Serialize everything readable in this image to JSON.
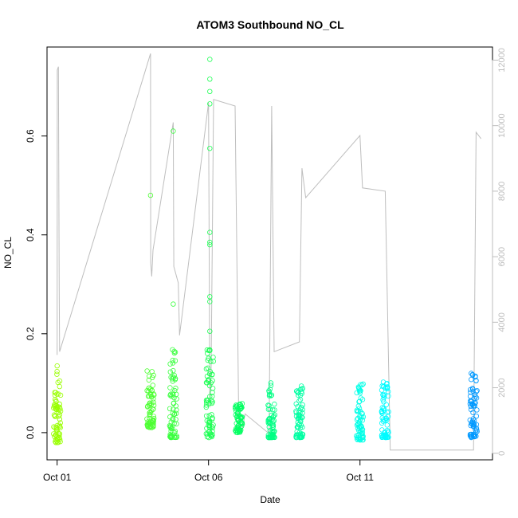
{
  "chart_data": {
    "type": "scatter",
    "title": "ATOM3 Southbound NO_CL",
    "xlabel": "Date",
    "ylabel": "NO_CL",
    "x_ticks": [
      "Oct 01",
      "Oct 06",
      "Oct 11"
    ],
    "x_tick_dates": [
      "2023-10-01",
      "2023-10-06",
      "2023-10-11"
    ],
    "xlim": [
      "2023-09-30T16:00",
      "2023-10-15T09:00"
    ],
    "ylim": [
      -0.055,
      0.78
    ],
    "y_ticks": [
      0.0,
      0.2,
      0.4,
      0.6
    ],
    "right_ylim": [
      -200,
      12400
    ],
    "right_ticks": [
      0,
      2000,
      4000,
      6000,
      8000,
      10000,
      12000
    ],
    "grid": false,
    "legend": "none",
    "colors": {
      "points_start": "#99ff00",
      "points_mid": "#00ff66",
      "points_late": "#00ffff",
      "points_end": "#0099ff",
      "secondary_line": "#bebebe"
    },
    "clusters": [
      {
        "t": "2023-10-01T00:00",
        "range": [
          -0.02,
          0.125
        ],
        "outliers": [
          0.135
        ]
      },
      {
        "t": "2023-10-04T02:00",
        "range": [
          0.01,
          0.13
        ],
        "outliers": [
          0.48
        ]
      },
      {
        "t": "2023-10-04T20:00",
        "range": [
          -0.01,
          0.17
        ],
        "outliers": [
          0.26,
          0.61
        ]
      },
      {
        "t": "2023-10-06T01:00",
        "range": [
          -0.01,
          0.18
        ],
        "outliers": [
          0.205,
          0.265,
          0.275,
          0.38,
          0.385,
          0.405,
          0.575,
          0.665,
          0.69,
          0.715,
          0.755
        ]
      },
      {
        "t": "2023-10-07T00:00",
        "range": [
          0.0,
          0.06
        ],
        "outliers": []
      },
      {
        "t": "2023-10-08T02:00",
        "range": [
          -0.01,
          0.105
        ],
        "outliers": []
      },
      {
        "t": "2023-10-09T00:00",
        "range": [
          -0.01,
          0.095
        ],
        "outliers": []
      },
      {
        "t": "2023-10-11T00:00",
        "range": [
          -0.015,
          0.105
        ],
        "outliers": []
      },
      {
        "t": "2023-10-11T20:00",
        "range": [
          -0.01,
          0.11
        ],
        "outliers": []
      },
      {
        "t": "2023-10-14T18:00",
        "range": [
          -0.01,
          0.12
        ],
        "outliers": []
      }
    ],
    "secondary_series": {
      "x": [
        "2023-10-01T00:00",
        "2023-10-01T00:10",
        "2023-10-01T01:00",
        "2023-10-01T01:40",
        "2023-10-01T02:00",
        "2023-10-04T02:00",
        "2023-10-04T02:10",
        "2023-10-04T03:00",
        "2023-10-04T04:00",
        "2023-10-04T20:00",
        "2023-10-04T20:30",
        "2023-10-05T00:00",
        "2023-10-05T01:00",
        "2023-10-06T00:00",
        "2023-10-06T01:00",
        "2023-10-06T02:00",
        "2023-10-06T04:00",
        "2023-10-06T21:00",
        "2023-10-07T00:00",
        "2023-10-07T02:00",
        "2023-10-07T05:00",
        "2023-10-08T00:00",
        "2023-10-08T02:00",
        "2023-10-08T04:00",
        "2023-10-09T00:00",
        "2023-10-09T02:00",
        "2023-10-09T05:00",
        "2023-10-11T00:00",
        "2023-10-11T02:00",
        "2023-10-11T20:00",
        "2023-10-12T00:00",
        "2023-10-14T18:00",
        "2023-10-14T20:00",
        "2023-10-15T00:00"
      ],
      "y": [
        3000,
        11700,
        11800,
        5000,
        3100,
        12200,
        5800,
        5400,
        6200,
        10100,
        5700,
        5200,
        3600,
        10700,
        1400,
        2400,
        10800,
        10600,
        800,
        600,
        1200,
        600,
        10600,
        3100,
        3400,
        8700,
        7800,
        9700,
        8100,
        8000,
        100,
        100,
        9800,
        9600
      ]
    }
  }
}
